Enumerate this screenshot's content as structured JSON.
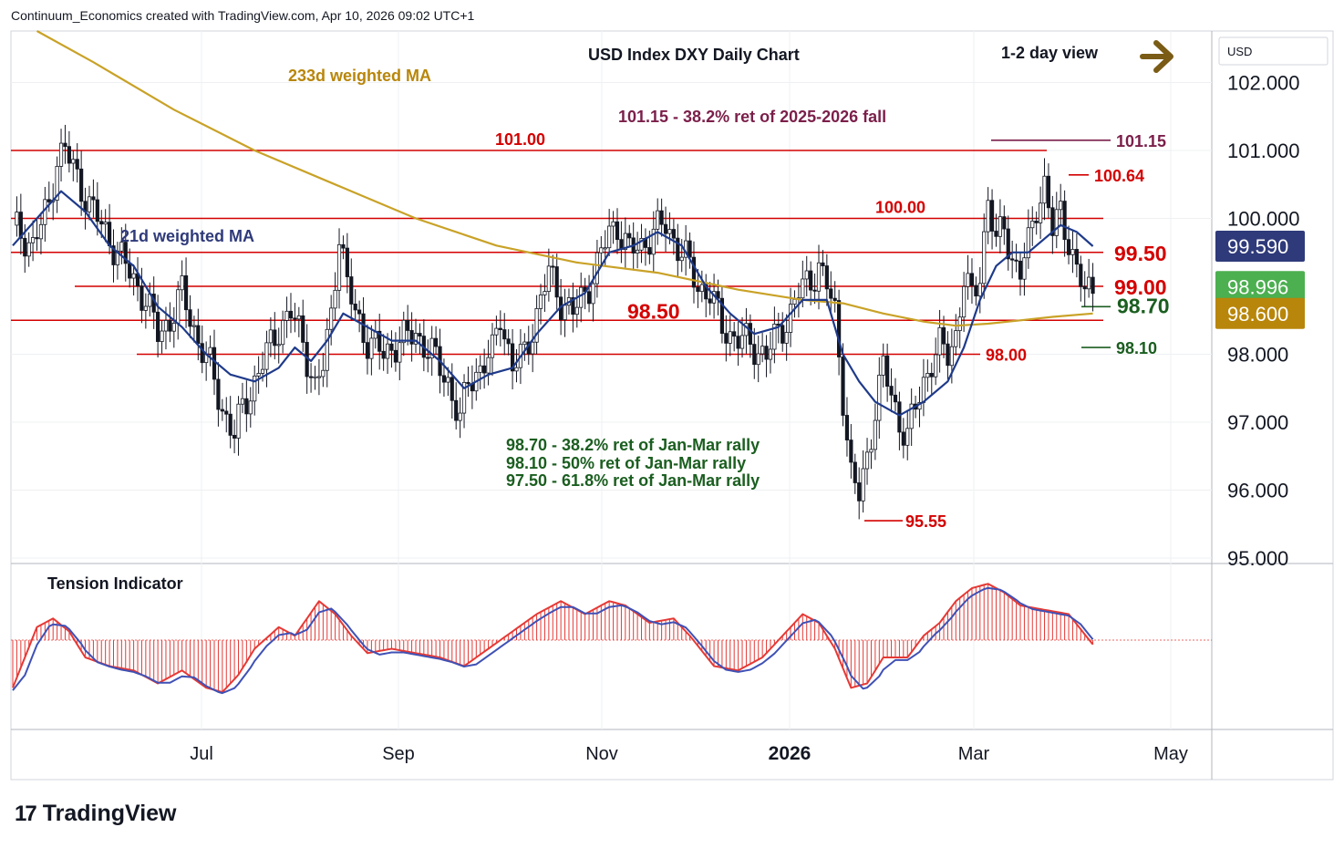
{
  "header": {
    "text": "Continuum_Economics created with TradingView.com, Apr 10, 2026 09:02 UTC+1"
  },
  "brand": {
    "logo_icon": "tradingview-logo-icon",
    "name": "TradingView"
  },
  "colors": {
    "up": "#131722",
    "down": "#131722",
    "level": "#d40000",
    "ma21": "#1e3a8a",
    "ma233": "#c9a227",
    "fib": "#1b5e20",
    "tension_bar": "#e53935",
    "tension_signal": "#3f51b5",
    "ret_label": "#7b1f4a"
  },
  "chart_data": {
    "type": "candlestick",
    "title": "USD Index DXY Daily Chart",
    "view_label": "1-2 day view",
    "view_arrow": "right-arrow-icon",
    "currency": "USD",
    "x_labels": [
      "Jul",
      "Sep",
      "Nov",
      "2026",
      "Mar",
      "May"
    ],
    "y_ticks": [
      "102.000",
      "101.000",
      "100.000",
      "98.000",
      "97.000",
      "96.000",
      "95.000"
    ],
    "ylim": [
      94.95,
      102.55
    ],
    "price_badges": [
      {
        "value": "99.590",
        "y": 99.59,
        "color": "#2f3a7a"
      },
      {
        "value": "98.996",
        "y": 98.996,
        "color": "#4caf50"
      },
      {
        "value": "98.600",
        "y": 98.6,
        "color": "#b8860b"
      }
    ],
    "levels": [
      {
        "label": "101.00",
        "value": 101.0
      },
      {
        "label": "100.00",
        "value": 100.0
      },
      {
        "label": "99.50",
        "value": 99.5
      },
      {
        "label": "99.00",
        "value": 99.0
      },
      {
        "label": "98.50",
        "value": 98.5
      },
      {
        "label": "98.00",
        "value": 98.0
      }
    ],
    "markers": [
      {
        "label": "101.15",
        "value": 101.15
      },
      {
        "label": "100.64",
        "value": 100.64
      },
      {
        "label": "98.70",
        "value": 98.7
      },
      {
        "label": "98.10",
        "value": 98.1
      },
      {
        "label": "95.55",
        "value": 95.55
      }
    ],
    "annotations": {
      "ma233": "233d weighted MA",
      "ma21": "21d weighted MA",
      "ret_2025": "101.15 - 38.2% ret of 2025-2026 fall",
      "fib_1": "98.70 - 38.2% ret of Jan-Mar rally",
      "fib_2": "98.10 - 50% ret of Jan-Mar rally",
      "fib_3": "97.50 - 61.8% ret of Jan-Mar rally"
    },
    "path_close": [
      [
        0,
        99.9
      ],
      [
        5,
        99.6
      ],
      [
        9,
        100.2
      ],
      [
        11,
        100.9
      ],
      [
        13,
        101.0
      ],
      [
        16,
        100.6
      ],
      [
        19,
        100.2
      ],
      [
        23,
        99.8
      ],
      [
        27,
        99.4
      ],
      [
        30,
        99.1
      ],
      [
        33,
        98.8
      ],
      [
        36,
        98.3
      ],
      [
        39,
        98.5
      ],
      [
        42,
        98.9
      ],
      [
        46,
        98.2
      ],
      [
        49,
        97.8
      ],
      [
        52,
        97.2
      ],
      [
        55,
        96.8
      ],
      [
        57,
        97.2
      ],
      [
        60,
        97.6
      ],
      [
        63,
        98.0
      ],
      [
        66,
        98.4
      ],
      [
        69,
        98.6
      ],
      [
        72,
        98.2
      ],
      [
        75,
        97.5
      ],
      [
        77,
        97.8
      ],
      [
        79,
        98.6
      ],
      [
        81,
        99.8
      ],
      [
        83,
        99.0
      ],
      [
        85,
        98.6
      ],
      [
        88,
        98.2
      ],
      [
        92,
        98.0
      ],
      [
        96,
        98.2
      ],
      [
        100,
        98.3
      ],
      [
        104,
        98.0
      ],
      [
        108,
        97.6
      ],
      [
        111,
        97.0
      ],
      [
        113,
        97.6
      ],
      [
        116,
        97.8
      ],
      [
        119,
        98.0
      ],
      [
        121,
        98.6
      ],
      [
        124,
        97.8
      ],
      [
        127,
        98.0
      ],
      [
        130,
        98.6
      ],
      [
        133,
        99.2
      ],
      [
        136,
        98.8
      ],
      [
        139,
        98.6
      ],
      [
        142,
        98.9
      ],
      [
        145,
        99.3
      ],
      [
        148,
        99.8
      ],
      [
        150,
        99.9
      ],
      [
        153,
        99.5
      ],
      [
        156,
        99.6
      ],
      [
        159,
        99.8
      ],
      [
        162,
        99.9
      ],
      [
        164,
        99.7
      ],
      [
        167,
        99.4
      ],
      [
        170,
        99.0
      ],
      [
        173,
        98.9
      ],
      [
        176,
        98.4
      ],
      [
        178,
        98.3
      ],
      [
        181,
        98.2
      ],
      [
        184,
        98.1
      ],
      [
        187,
        98.0
      ],
      [
        189,
        98.2
      ],
      [
        192,
        98.5
      ],
      [
        195,
        98.9
      ],
      [
        198,
        99.1
      ],
      [
        200,
        99.3
      ],
      [
        202,
        99.0
      ],
      [
        204,
        98.6
      ],
      [
        206,
        97.4
      ],
      [
        208,
        96.2
      ],
      [
        210,
        95.9
      ],
      [
        212,
        96.5
      ],
      [
        214,
        97.2
      ],
      [
        216,
        97.8
      ],
      [
        218,
        97.4
      ],
      [
        220,
        97.0
      ],
      [
        222,
        96.8
      ],
      [
        224,
        97.2
      ],
      [
        226,
        97.6
      ],
      [
        228,
        97.9
      ],
      [
        230,
        98.1
      ],
      [
        232,
        98.0
      ],
      [
        234,
        98.3
      ],
      [
        236,
        99.1
      ],
      [
        238,
        98.8
      ],
      [
        240,
        99.2
      ],
      [
        242,
        100.3
      ],
      [
        244,
        99.6
      ],
      [
        246,
        99.9
      ],
      [
        248,
        99.4
      ],
      [
        250,
        99.2
      ],
      [
        252,
        99.6
      ],
      [
        254,
        100.2
      ],
      [
        256,
        100.5
      ],
      [
        258,
        99.8
      ],
      [
        260,
        100.1
      ],
      [
        262,
        99.7
      ],
      [
        264,
        99.2
      ],
      [
        266,
        98.9
      ],
      [
        268,
        99.0
      ]
    ],
    "ma21": [
      [
        0,
        99.6
      ],
      [
        6,
        100.0
      ],
      [
        12,
        100.4
      ],
      [
        18,
        100.1
      ],
      [
        24,
        99.6
      ],
      [
        30,
        99.3
      ],
      [
        36,
        98.7
      ],
      [
        42,
        98.4
      ],
      [
        48,
        98.0
      ],
      [
        54,
        97.7
      ],
      [
        60,
        97.6
      ],
      [
        66,
        97.8
      ],
      [
        70,
        98.1
      ],
      [
        74,
        97.9
      ],
      [
        78,
        98.2
      ],
      [
        82,
        98.6
      ],
      [
        88,
        98.4
      ],
      [
        94,
        98.2
      ],
      [
        100,
        98.2
      ],
      [
        106,
        97.9
      ],
      [
        112,
        97.5
      ],
      [
        118,
        97.7
      ],
      [
        124,
        97.8
      ],
      [
        130,
        98.3
      ],
      [
        136,
        98.7
      ],
      [
        142,
        98.9
      ],
      [
        148,
        99.5
      ],
      [
        154,
        99.6
      ],
      [
        160,
        99.8
      ],
      [
        166,
        99.6
      ],
      [
        172,
        99.0
      ],
      [
        178,
        98.6
      ],
      [
        184,
        98.3
      ],
      [
        190,
        98.4
      ],
      [
        196,
        98.8
      ],
      [
        202,
        98.8
      ],
      [
        206,
        98.0
      ],
      [
        210,
        97.6
      ],
      [
        214,
        97.3
      ],
      [
        220,
        97.1
      ],
      [
        226,
        97.3
      ],
      [
        232,
        97.6
      ],
      [
        236,
        98.1
      ],
      [
        240,
        98.8
      ],
      [
        244,
        99.3
      ],
      [
        248,
        99.5
      ],
      [
        252,
        99.5
      ],
      [
        256,
        99.7
      ],
      [
        260,
        99.9
      ],
      [
        264,
        99.8
      ],
      [
        268,
        99.59
      ]
    ],
    "ma233": [
      [
        6,
        102.8
      ],
      [
        20,
        102.3
      ],
      [
        40,
        101.6
      ],
      [
        60,
        101.0
      ],
      [
        80,
        100.5
      ],
      [
        100,
        100.0
      ],
      [
        120,
        99.6
      ],
      [
        140,
        99.35
      ],
      [
        160,
        99.2
      ],
      [
        180,
        98.95
      ],
      [
        196,
        98.8
      ],
      [
        206,
        98.75
      ],
      [
        216,
        98.6
      ],
      [
        226,
        98.48
      ],
      [
        234,
        98.42
      ],
      [
        242,
        98.45
      ],
      [
        250,
        98.5
      ],
      [
        258,
        98.55
      ],
      [
        268,
        98.6
      ]
    ],
    "tension": [
      [
        0,
        -0.55
      ],
      [
        6,
        0.15
      ],
      [
        10,
        0.25
      ],
      [
        14,
        0.1
      ],
      [
        18,
        -0.2
      ],
      [
        24,
        -0.3
      ],
      [
        30,
        -0.35
      ],
      [
        36,
        -0.5
      ],
      [
        42,
        -0.35
      ],
      [
        48,
        -0.55
      ],
      [
        52,
        -0.6
      ],
      [
        56,
        -0.4
      ],
      [
        60,
        -0.1
      ],
      [
        66,
        0.15
      ],
      [
        70,
        0.05
      ],
      [
        76,
        0.45
      ],
      [
        80,
        0.3
      ],
      [
        84,
        0.05
      ],
      [
        88,
        -0.15
      ],
      [
        94,
        -0.1
      ],
      [
        100,
        -0.15
      ],
      [
        106,
        -0.2
      ],
      [
        112,
        -0.3
      ],
      [
        118,
        -0.1
      ],
      [
        124,
        0.1
      ],
      [
        130,
        0.3
      ],
      [
        136,
        0.45
      ],
      [
        142,
        0.3
      ],
      [
        148,
        0.45
      ],
      [
        152,
        0.4
      ],
      [
        158,
        0.2
      ],
      [
        164,
        0.25
      ],
      [
        168,
        0.05
      ],
      [
        174,
        -0.3
      ],
      [
        180,
        -0.35
      ],
      [
        186,
        -0.2
      ],
      [
        192,
        0.1
      ],
      [
        196,
        0.3
      ],
      [
        200,
        0.2
      ],
      [
        204,
        -0.1
      ],
      [
        208,
        -0.55
      ],
      [
        212,
        -0.5
      ],
      [
        216,
        -0.2
      ],
      [
        222,
        -0.2
      ],
      [
        226,
        0.05
      ],
      [
        230,
        0.2
      ],
      [
        234,
        0.45
      ],
      [
        238,
        0.6
      ],
      [
        242,
        0.65
      ],
      [
        246,
        0.55
      ],
      [
        250,
        0.4
      ],
      [
        256,
        0.35
      ],
      [
        262,
        0.3
      ],
      [
        268,
        -0.05
      ]
    ]
  }
}
